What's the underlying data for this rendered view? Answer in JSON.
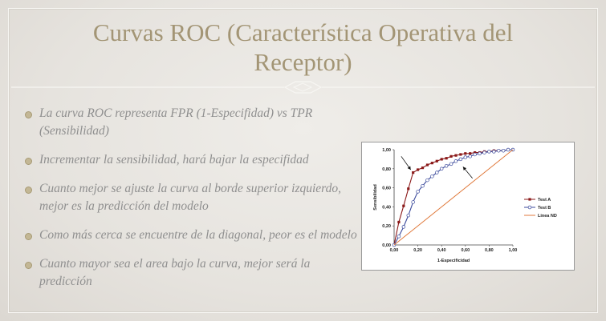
{
  "slide": {
    "title": "Curvas ROC (Característica Operativa del Receptor)",
    "bullets": [
      "La curva ROC representa FPR (1-Especifidad) vs TPR (Sensibilidad)",
      "Incrementar la sensibilidad, hará bajar la especifidad",
      "Cuanto mejor se ajuste la curva al borde superior izquierdo, mejor es la predicción del modelo",
      "Como más cerca se encuentre de la diagonal, peor es el modelo",
      "Cuanto mayor sea el area bajo la curva, mejor será la predicción"
    ],
    "colors": {
      "title": "#a39575",
      "bullet_text": "#8f8f8f",
      "bullet_dot": "#c3b795"
    }
  },
  "chart_data": {
    "type": "line",
    "title": "",
    "xlabel": "1-Especificidad",
    "ylabel": "Sensibilidad",
    "xlim": [
      0,
      1
    ],
    "ylim": [
      0,
      1
    ],
    "xticks": [
      "0,00",
      "0,20",
      "0,40",
      "0,60",
      "0,80",
      "1,00"
    ],
    "yticks": [
      "0,00",
      "0,20",
      "0,40",
      "0,60",
      "0,80",
      "1,00"
    ],
    "grid": false,
    "legend_position": "right",
    "series": [
      {
        "name": "Test A",
        "color": "#8b1a1a",
        "marker": "filled-square",
        "x": [
          0,
          0.04,
          0.08,
          0.12,
          0.16,
          0.2,
          0.24,
          0.28,
          0.32,
          0.36,
          0.4,
          0.44,
          0.48,
          0.52,
          0.56,
          0.6,
          0.64,
          0.68,
          0.72,
          0.76,
          0.8,
          0.84,
          0.88,
          0.92,
          0.96,
          1.0
        ],
        "y": [
          0,
          0.24,
          0.41,
          0.59,
          0.76,
          0.79,
          0.81,
          0.84,
          0.86,
          0.88,
          0.9,
          0.91,
          0.93,
          0.94,
          0.95,
          0.96,
          0.96,
          0.97,
          0.97,
          0.98,
          0.98,
          0.99,
          0.99,
          0.99,
          1.0,
          1.0
        ]
      },
      {
        "name": "Test B",
        "color": "#3b4a9c",
        "marker": "open-circle",
        "x": [
          0,
          0.04,
          0.08,
          0.12,
          0.16,
          0.2,
          0.24,
          0.28,
          0.32,
          0.36,
          0.4,
          0.44,
          0.48,
          0.52,
          0.56,
          0.6,
          0.64,
          0.68,
          0.72,
          0.76,
          0.8,
          0.84,
          0.88,
          0.92,
          0.96,
          1.0
        ],
        "y": [
          0,
          0.09,
          0.19,
          0.31,
          0.45,
          0.56,
          0.62,
          0.68,
          0.72,
          0.76,
          0.8,
          0.83,
          0.85,
          0.88,
          0.9,
          0.92,
          0.93,
          0.95,
          0.96,
          0.97,
          0.98,
          0.98,
          0.99,
          0.99,
          1.0,
          1.0
        ]
      },
      {
        "name": "Linea ND",
        "color": "#e07a3c",
        "marker": "none",
        "x": [
          0,
          1
        ],
        "y": [
          0,
          1
        ]
      }
    ],
    "annotations": [
      {
        "type": "arrow",
        "from": [
          0.06,
          0.93
        ],
        "to": [
          0.14,
          0.79
        ]
      },
      {
        "type": "arrow",
        "from": [
          0.66,
          0.7
        ],
        "to": [
          0.58,
          0.82
        ]
      }
    ]
  }
}
